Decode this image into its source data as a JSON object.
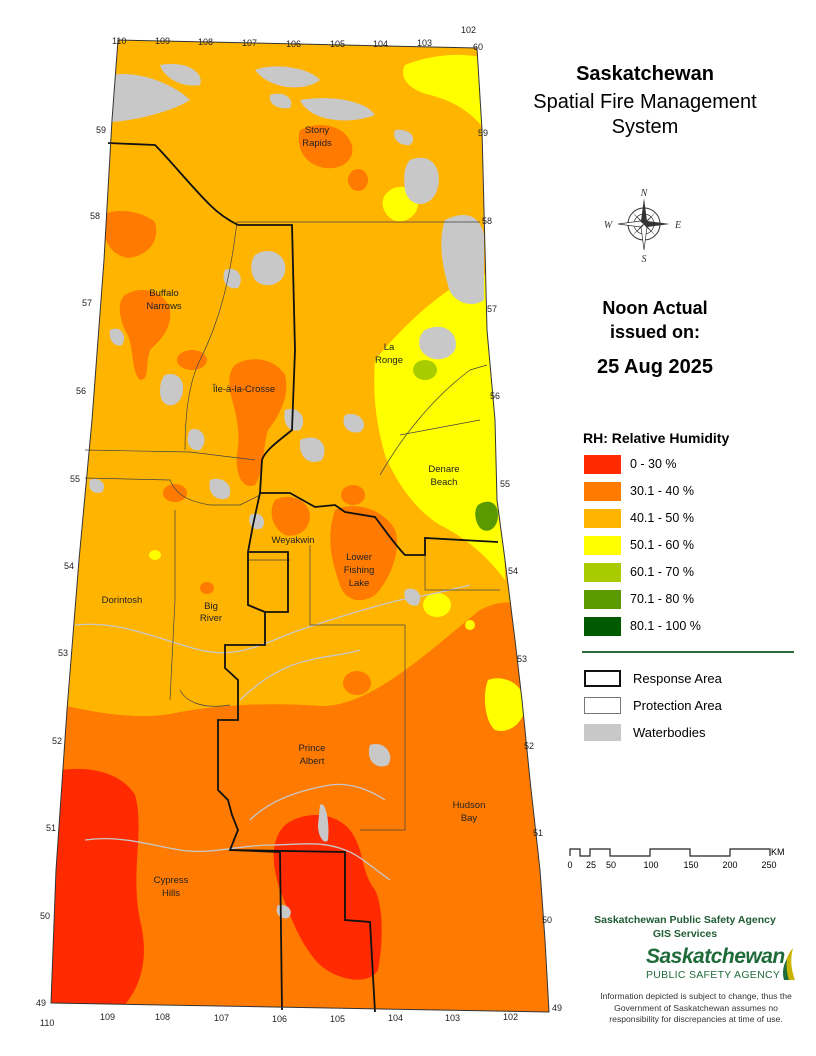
{
  "header": {
    "province": "Saskatchewan",
    "system_line1": "Spatial Fire Management",
    "system_line2": "System"
  },
  "compass": {
    "north": "N",
    "west": "W",
    "east": "E",
    "south": "S"
  },
  "issued": {
    "line1": "Noon Actual",
    "line2": "issued on:",
    "date": "25 Aug 2025"
  },
  "legend": {
    "title": "RH: Relative Humidity",
    "classes": [
      {
        "label": "0 - 30 %",
        "color": "#ff2a00"
      },
      {
        "label": "30.1 - 40 %",
        "color": "#ff7a00"
      },
      {
        "label": "40.1 - 50 %",
        "color": "#ffb400"
      },
      {
        "label": "50.1 - 60 %",
        "color": "#ffff00"
      },
      {
        "label": "60.1 - 70 %",
        "color": "#a8cc00"
      },
      {
        "label": "70.1 - 80 %",
        "color": "#5a9a00"
      },
      {
        "label": "80.1 - 100 %",
        "color": "#005a00"
      }
    ],
    "boundaries": [
      {
        "label": "Response Area"
      },
      {
        "label": "Protection Area"
      },
      {
        "label": "Waterbodies",
        "color": "#c8c8c8"
      }
    ]
  },
  "scale_bar": {
    "unit": "KM",
    "ticks": [
      "0",
      "25",
      "50",
      "100",
      "150",
      "200",
      "250"
    ]
  },
  "map": {
    "longitudes_top": [
      "110",
      "109",
      "108",
      "107",
      "106",
      "105",
      "104",
      "103",
      "102"
    ],
    "longitudes_bottom": [
      "110",
      "109",
      "108",
      "107",
      "106",
      "105",
      "104",
      "103",
      "102"
    ],
    "latitudes": [
      "60",
      "59",
      "58",
      "57",
      "56",
      "55",
      "54",
      "53",
      "52",
      "51",
      "50",
      "49"
    ],
    "places": [
      {
        "label": "Stony",
        "label2": "Rapids"
      },
      {
        "label": "Buffalo",
        "label2": "Narrows"
      },
      {
        "label": "La",
        "label2": "Ronge"
      },
      {
        "label": "Île-à-la-Crosse"
      },
      {
        "label": "Denare",
        "label2": "Beach"
      },
      {
        "label": "Weyakwin"
      },
      {
        "label": "Lower",
        "label2": "Fishing",
        "label3": "Lake"
      },
      {
        "label": "Dorintosh"
      },
      {
        "label": "Big",
        "label2": "River"
      },
      {
        "label": "Prince",
        "label2": "Albert"
      },
      {
        "label": "Hudson",
        "label2": "Bay"
      },
      {
        "label": "Cypress",
        "label2": "Hills"
      }
    ]
  },
  "agency": {
    "line1": "Saskatchewan Public Safety Agency",
    "line2": "GIS  Services",
    "logo_name": "Saskatchewan",
    "logo_sub": "PUBLIC SAFETY AGENCY",
    "disclaimer": "Information depicted is subject to change, thus the Government of Saskatchewan assumes no responsibility for discrepancies at time of use."
  }
}
